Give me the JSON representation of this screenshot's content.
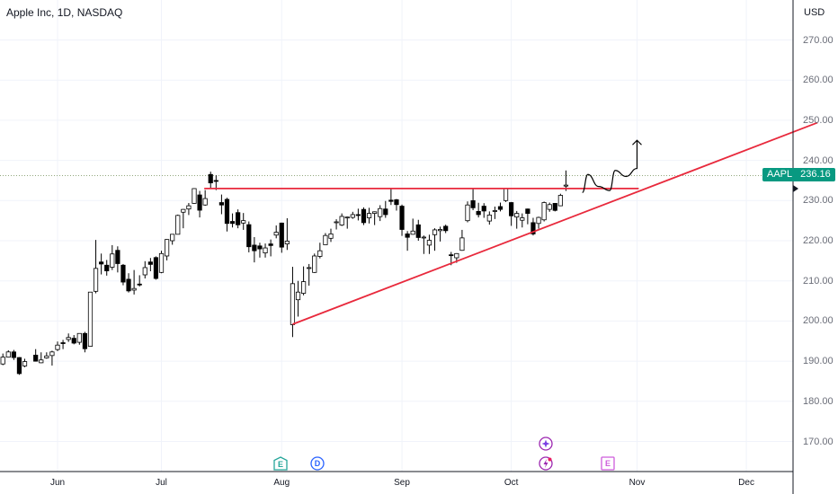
{
  "header": {
    "title": "Apple Inc, 1D, NASDAQ",
    "currency": "USD"
  },
  "price_label": {
    "symbol": "AAPL",
    "value": "236.16",
    "color": "#089981"
  },
  "colors": {
    "trendline": "#e8293c",
    "candle_up": "#ffffff",
    "candle_down": "#000000",
    "event_earnings": "#26a69a",
    "event_dividend": "#2962ff",
    "event_purple": "#9c27b0"
  },
  "events": [
    {
      "icon": "earnings-icon",
      "label": "E",
      "date": "Aug 1"
    },
    {
      "icon": "dividend-icon",
      "label": "D",
      "date": "Aug 12"
    },
    {
      "icon": "sparkle-icon",
      "label": "",
      "date": "Oct 14"
    },
    {
      "icon": "bolt-icon",
      "label": "",
      "date": "Oct 14"
    },
    {
      "icon": "earnings-icon",
      "label": "E",
      "date": "Oct 31"
    }
  ],
  "chart_data": {
    "type": "candlestick",
    "title": "Apple Inc, 1D, NASDAQ",
    "ylim": [
      163,
      276
    ],
    "y_ticks": [
      "270.00",
      "260.00",
      "250.00",
      "240.00",
      "230.00",
      "220.00",
      "210.00",
      "200.00",
      "190.00",
      "180.00",
      "170.00"
    ],
    "x_ticks": [
      "Jun",
      "Jul",
      "Aug",
      "Sep",
      "Oct",
      "Nov",
      "Dec"
    ],
    "last_price": 236.16,
    "candles": [
      {
        "d": "May 20",
        "o": 189.3,
        "h": 191.9,
        "l": 189.0,
        "c": 191.0
      },
      {
        "d": "May 21",
        "o": 191.0,
        "h": 192.7,
        "l": 190.9,
        "c": 192.3
      },
      {
        "d": "May 22",
        "o": 192.3,
        "h": 192.8,
        "l": 190.3,
        "c": 190.9
      },
      {
        "d": "May 23",
        "o": 190.9,
        "h": 191.0,
        "l": 186.6,
        "c": 186.9
      },
      {
        "d": "May 24",
        "o": 188.8,
        "h": 190.6,
        "l": 188.5,
        "c": 189.9
      },
      {
        "d": "May 28",
        "o": 191.5,
        "h": 193.0,
        "l": 189.9,
        "c": 189.99
      },
      {
        "d": "May 29",
        "o": 189.6,
        "h": 192.2,
        "l": 189.5,
        "c": 190.3
      },
      {
        "d": "May 30",
        "o": 190.8,
        "h": 192.2,
        "l": 190.6,
        "c": 191.3
      },
      {
        "d": "May 31",
        "o": 191.4,
        "h": 192.6,
        "l": 188.9,
        "c": 192.3
      },
      {
        "d": "Jun 3",
        "o": 192.9,
        "h": 194.9,
        "l": 192.5,
        "c": 194.0
      },
      {
        "d": "Jun 4",
        "o": 194.6,
        "h": 195.3,
        "l": 193.0,
        "c": 194.4
      },
      {
        "d": "Jun 5",
        "o": 195.4,
        "h": 196.9,
        "l": 194.8,
        "c": 195.9
      },
      {
        "d": "Jun 6",
        "o": 195.7,
        "h": 196.5,
        "l": 194.2,
        "c": 194.5
      },
      {
        "d": "Jun 7",
        "o": 194.7,
        "h": 196.9,
        "l": 194.1,
        "c": 196.9
      },
      {
        "d": "Jun 10",
        "o": 196.9,
        "h": 197.3,
        "l": 192.2,
        "c": 193.1
      },
      {
        "d": "Jun 11",
        "o": 193.7,
        "h": 207.2,
        "l": 193.6,
        "c": 207.2
      },
      {
        "d": "Jun 12",
        "o": 207.4,
        "h": 220.2,
        "l": 206.9,
        "c": 213.1
      },
      {
        "d": "Jun 13",
        "o": 214.7,
        "h": 216.8,
        "l": 211.6,
        "c": 214.2
      },
      {
        "d": "Jun 14",
        "o": 213.9,
        "h": 215.2,
        "l": 211.3,
        "c": 212.5
      },
      {
        "d": "Jun 17",
        "o": 213.4,
        "h": 218.9,
        "l": 212.7,
        "c": 216.7
      },
      {
        "d": "Jun 18",
        "o": 217.6,
        "h": 218.6,
        "l": 212.1,
        "c": 214.3
      },
      {
        "d": "Jun 20",
        "o": 213.9,
        "h": 214.2,
        "l": 208.9,
        "c": 209.7
      },
      {
        "d": "Jun 21",
        "o": 210.4,
        "h": 211.9,
        "l": 207.1,
        "c": 207.5
      },
      {
        "d": "Jun 24",
        "o": 207.7,
        "h": 212.7,
        "l": 206.6,
        "c": 208.1
      },
      {
        "d": "Jun 25",
        "o": 209.2,
        "h": 211.4,
        "l": 208.6,
        "c": 209.1
      },
      {
        "d": "Jun 26",
        "o": 211.5,
        "h": 214.9,
        "l": 210.6,
        "c": 213.3
      },
      {
        "d": "Jun 27",
        "o": 214.7,
        "h": 215.7,
        "l": 212.4,
        "c": 214.1
      },
      {
        "d": "Jun 28",
        "o": 215.8,
        "h": 216.1,
        "l": 210.3,
        "c": 210.6
      },
      {
        "d": "Jul 1",
        "o": 212.1,
        "h": 217.5,
        "l": 211.9,
        "c": 216.8
      },
      {
        "d": "Jul 2",
        "o": 216.2,
        "h": 220.4,
        "l": 215.1,
        "c": 220.3
      },
      {
        "d": "Jul 3",
        "o": 220.0,
        "h": 221.6,
        "l": 219.0,
        "c": 221.6
      },
      {
        "d": "Jul 5",
        "o": 221.6,
        "h": 226.5,
        "l": 221.6,
        "c": 226.3
      },
      {
        "d": "Jul 8",
        "o": 227.1,
        "h": 227.9,
        "l": 223.1,
        "c": 227.8
      },
      {
        "d": "Jul 9",
        "o": 227.9,
        "h": 229.4,
        "l": 226.4,
        "c": 228.7
      },
      {
        "d": "Jul 10",
        "o": 229.3,
        "h": 233.1,
        "l": 229.2,
        "c": 232.98
      },
      {
        "d": "Jul 11",
        "o": 231.4,
        "h": 232.4,
        "l": 225.8,
        "c": 227.6
      },
      {
        "d": "Jul 12",
        "o": 228.9,
        "h": 232.6,
        "l": 228.7,
        "c": 230.5
      },
      {
        "d": "Jul 15",
        "o": 236.5,
        "h": 237.2,
        "l": 233.1,
        "c": 234.4
      },
      {
        "d": "Jul 16",
        "o": 235.0,
        "h": 236.3,
        "l": 232.6,
        "c": 234.8
      },
      {
        "d": "Jul 17",
        "o": 229.5,
        "h": 231.5,
        "l": 226.6,
        "c": 228.9
      },
      {
        "d": "Jul 18",
        "o": 230.3,
        "h": 230.7,
        "l": 222.3,
        "c": 224.3
      },
      {
        "d": "Jul 19",
        "o": 224.8,
        "h": 226.8,
        "l": 223.3,
        "c": 224.3
      },
      {
        "d": "Jul 22",
        "o": 227.0,
        "h": 227.8,
        "l": 223.1,
        "c": 223.96
      },
      {
        "d": "Jul 23",
        "o": 224.4,
        "h": 226.9,
        "l": 222.7,
        "c": 225.0
      },
      {
        "d": "Jul 24",
        "o": 224.0,
        "h": 224.8,
        "l": 217.1,
        "c": 218.5
      },
      {
        "d": "Jul 25",
        "o": 218.9,
        "h": 220.9,
        "l": 214.6,
        "c": 217.5
      },
      {
        "d": "Jul 26",
        "o": 218.7,
        "h": 219.5,
        "l": 215.8,
        "c": 217.96
      },
      {
        "d": "Jul 29",
        "o": 216.96,
        "h": 219.3,
        "l": 215.8,
        "c": 218.2
      },
      {
        "d": "Jul 30",
        "o": 219.2,
        "h": 220.3,
        "l": 216.1,
        "c": 218.8
      },
      {
        "d": "Jul 31",
        "o": 221.4,
        "h": 223.8,
        "l": 220.6,
        "c": 222.1
      },
      {
        "d": "Aug 1",
        "o": 224.4,
        "h": 224.5,
        "l": 217.0,
        "c": 218.4
      },
      {
        "d": "Aug 2",
        "o": 219.2,
        "h": 225.6,
        "l": 217.7,
        "c": 219.9
      },
      {
        "d": "Aug 5",
        "o": 199.1,
        "h": 213.5,
        "l": 196.0,
        "c": 209.3
      },
      {
        "d": "Aug 6",
        "o": 205.3,
        "h": 209.99,
        "l": 201.1,
        "c": 207.2
      },
      {
        "d": "Aug 7",
        "o": 206.9,
        "h": 213.6,
        "l": 206.4,
        "c": 209.8
      },
      {
        "d": "Aug 8",
        "o": 213.1,
        "h": 214.2,
        "l": 208.8,
        "c": 213.3
      },
      {
        "d": "Aug 9",
        "o": 212.1,
        "h": 216.8,
        "l": 211.97,
        "c": 216.2
      },
      {
        "d": "Aug 12",
        "o": 216.1,
        "h": 219.5,
        "l": 215.6,
        "c": 217.5
      },
      {
        "d": "Aug 13",
        "o": 219.0,
        "h": 221.9,
        "l": 219.0,
        "c": 221.3
      },
      {
        "d": "Aug 14",
        "o": 220.6,
        "h": 223.0,
        "l": 219.7,
        "c": 221.7
      },
      {
        "d": "Aug 15",
        "o": 224.6,
        "h": 225.35,
        "l": 222.8,
        "c": 224.7
      },
      {
        "d": "Aug 16",
        "o": 223.9,
        "h": 226.8,
        "l": 223.65,
        "c": 226.05
      },
      {
        "d": "Aug 19",
        "o": 225.7,
        "h": 225.99,
        "l": 223.0,
        "c": 225.89
      },
      {
        "d": "Aug 20",
        "o": 225.8,
        "h": 227.2,
        "l": 225.45,
        "c": 226.5
      },
      {
        "d": "Aug 21",
        "o": 226.5,
        "h": 227.98,
        "l": 225.05,
        "c": 226.4
      },
      {
        "d": "Aug 22",
        "o": 227.8,
        "h": 228.3,
        "l": 223.9,
        "c": 224.5
      },
      {
        "d": "Aug 23",
        "o": 225.7,
        "h": 228.2,
        "l": 224.3,
        "c": 226.8
      },
      {
        "d": "Aug 26",
        "o": 226.8,
        "h": 227.3,
        "l": 223.9,
        "c": 227.2
      },
      {
        "d": "Aug 27",
        "o": 226.0,
        "h": 228.85,
        "l": 224.9,
        "c": 228.0
      },
      {
        "d": "Aug 28",
        "o": 227.9,
        "h": 229.9,
        "l": 225.7,
        "c": 226.5
      },
      {
        "d": "Aug 29",
        "o": 230.1,
        "h": 232.9,
        "l": 228.9,
        "c": 229.8
      },
      {
        "d": "Aug 30",
        "o": 230.2,
        "h": 230.4,
        "l": 227.5,
        "c": 229.0
      },
      {
        "d": "Sep 3",
        "o": 228.6,
        "h": 229.0,
        "l": 221.2,
        "c": 222.8
      },
      {
        "d": "Sep 4",
        "o": 221.7,
        "h": 222.4,
        "l": 217.5,
        "c": 220.85
      },
      {
        "d": "Sep 5",
        "o": 221.6,
        "h": 225.5,
        "l": 221.5,
        "c": 222.4
      },
      {
        "d": "Sep 6",
        "o": 223.95,
        "h": 225.2,
        "l": 220.0,
        "c": 220.8
      },
      {
        "d": "Sep 9",
        "o": 220.8,
        "h": 221.3,
        "l": 216.7,
        "c": 220.9
      },
      {
        "d": "Sep 10",
        "o": 218.9,
        "h": 221.5,
        "l": 216.7,
        "c": 220.1
      },
      {
        "d": "Sep 11",
        "o": 221.5,
        "h": 223.1,
        "l": 217.5,
        "c": 222.7
      },
      {
        "d": "Sep 12",
        "o": 222.5,
        "h": 223.5,
        "l": 219.8,
        "c": 222.8
      },
      {
        "d": "Sep 13",
        "o": 223.6,
        "h": 224.0,
        "l": 221.9,
        "c": 222.5
      },
      {
        "d": "Sep 16",
        "o": 216.5,
        "h": 217.2,
        "l": 213.9,
        "c": 216.3
      },
      {
        "d": "Sep 17",
        "o": 215.75,
        "h": 216.9,
        "l": 214.5,
        "c": 216.8
      },
      {
        "d": "Sep 18",
        "o": 217.6,
        "h": 222.7,
        "l": 217.5,
        "c": 220.7
      },
      {
        "d": "Sep 19",
        "o": 224.99,
        "h": 229.8,
        "l": 224.6,
        "c": 228.9
      },
      {
        "d": "Sep 20",
        "o": 229.97,
        "h": 233.1,
        "l": 227.6,
        "c": 228.2
      },
      {
        "d": "Sep 23",
        "o": 227.3,
        "h": 229.45,
        "l": 225.8,
        "c": 226.5
      },
      {
        "d": "Sep 24",
        "o": 228.6,
        "h": 229.35,
        "l": 225.7,
        "c": 227.4
      },
      {
        "d": "Sep 25",
        "o": 224.9,
        "h": 227.3,
        "l": 224.0,
        "c": 226.4
      },
      {
        "d": "Sep 26",
        "o": 227.3,
        "h": 228.5,
        "l": 225.4,
        "c": 227.5
      },
      {
        "d": "Sep 27",
        "o": 228.5,
        "h": 229.5,
        "l": 227.3,
        "c": 227.8
      },
      {
        "d": "Sep 30",
        "o": 230.0,
        "h": 233.0,
        "l": 229.65,
        "c": 233.0
      },
      {
        "d": "Oct 1",
        "o": 229.5,
        "h": 229.65,
        "l": 223.7,
        "c": 226.2
      },
      {
        "d": "Oct 2",
        "o": 225.9,
        "h": 227.4,
        "l": 223.0,
        "c": 226.8
      },
      {
        "d": "Oct 3",
        "o": 225.1,
        "h": 226.8,
        "l": 223.3,
        "c": 225.7
      },
      {
        "d": "Oct 4",
        "o": 227.9,
        "h": 228.0,
        "l": 224.1,
        "c": 226.8
      },
      {
        "d": "Oct 7",
        "o": 224.5,
        "h": 225.7,
        "l": 221.3,
        "c": 221.7
      },
      {
        "d": "Oct 8",
        "o": 224.3,
        "h": 225.98,
        "l": 223.0,
        "c": 225.8
      },
      {
        "d": "Oct 9",
        "o": 225.2,
        "h": 229.75,
        "l": 224.8,
        "c": 229.5
      },
      {
        "d": "Oct 10",
        "o": 227.8,
        "h": 229.5,
        "l": 227.2,
        "c": 229.0
      },
      {
        "d": "Oct 11",
        "o": 229.3,
        "h": 229.4,
        "l": 227.3,
        "c": 227.55
      },
      {
        "d": "Oct 14",
        "o": 228.7,
        "h": 231.7,
        "l": 228.6,
        "c": 231.3
      },
      {
        "d": "Oct 15",
        "o": 233.6,
        "h": 237.5,
        "l": 232.4,
        "c": 233.85
      }
    ],
    "drawings": [
      {
        "type": "horizontal_line",
        "price": 233.0,
        "from": "Jul 12",
        "to": "Oct 31"
      },
      {
        "type": "trendline",
        "from": {
          "d": "Aug 5",
          "price": 199.2
        },
        "to": {
          "d": "Dec 19",
          "price": 249.4
        }
      },
      {
        "type": "projection_path",
        "points": [
          [
            "Oct 18",
            232.0
          ],
          [
            "Oct 21",
            236.5
          ],
          [
            "Oct 23",
            233.5
          ],
          [
            "Oct 25",
            232.5
          ],
          [
            "Oct 28",
            237.5
          ],
          [
            "Oct 30",
            236.0
          ],
          [
            "Nov 1",
            238.0
          ],
          [
            "Nov 2",
            245.0
          ]
        ]
      }
    ]
  }
}
